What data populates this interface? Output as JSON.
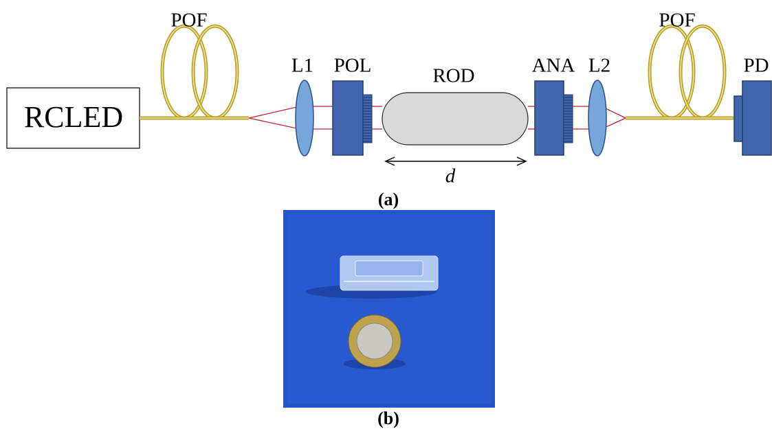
{
  "diagram": {
    "labels": {
      "source": "RCLED",
      "fiber_left": "POF",
      "lens1": "L1",
      "polarizer": "POL",
      "rod": "ROD",
      "analyzer": "ANA",
      "lens2": "L2",
      "fiber_right": "POF",
      "detector": "PD",
      "distance": "d"
    },
    "captions": {
      "a": "(a)",
      "b": "(b)"
    }
  }
}
